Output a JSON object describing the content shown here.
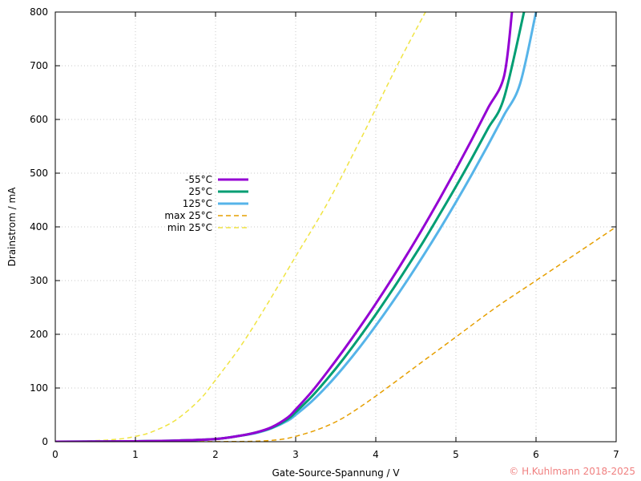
{
  "chart_data": {
    "type": "line",
    "title": "",
    "xlabel": "Gate-Source-Spannung / V",
    "ylabel": "Drainstrom / mA",
    "xlim": [
      0,
      7
    ],
    "ylim": [
      0,
      800
    ],
    "xticks": [
      0,
      1,
      2,
      3,
      4,
      5,
      6,
      7
    ],
    "yticks": [
      0,
      100,
      200,
      300,
      400,
      500,
      600,
      700,
      800
    ],
    "grid": true,
    "legend_position": "center-left",
    "series": [
      {
        "name": "-55°C",
        "color": "#9400d3",
        "dash": "solid",
        "x": [
          0,
          0.5,
          1.0,
          1.5,
          2.0,
          2.3,
          2.5,
          2.7,
          2.9,
          3.0,
          3.2,
          3.4,
          3.6,
          3.8,
          4.0,
          4.2,
          4.4,
          4.6,
          4.8,
          5.0,
          5.2,
          5.4,
          5.6,
          5.7
        ],
        "y": [
          0,
          0.3,
          0.8,
          2,
          5,
          11,
          17,
          27,
          45,
          60,
          93,
          131,
          171,
          213,
          257,
          303,
          351,
          401,
          453,
          507,
          563,
          621,
          680,
          800
        ]
      },
      {
        "name": "25°C",
        "color": "#009e73",
        "dash": "solid",
        "x": [
          0,
          0.5,
          1.0,
          1.5,
          2.0,
          2.3,
          2.5,
          2.7,
          2.9,
          3.0,
          3.2,
          3.4,
          3.6,
          3.8,
          4.0,
          4.2,
          4.4,
          4.6,
          4.8,
          5.0,
          5.2,
          5.4,
          5.6,
          5.85
        ],
        "y": [
          0,
          0.3,
          0.8,
          2,
          5,
          11,
          17,
          26,
          42,
          55,
          84,
          118,
          155,
          195,
          237,
          281,
          327,
          374,
          424,
          475,
          528,
          583,
          640,
          800
        ]
      },
      {
        "name": "125°C",
        "color": "#56b4e9",
        "dash": "solid",
        "x": [
          0,
          0.5,
          1.0,
          1.5,
          2.0,
          2.3,
          2.5,
          2.7,
          2.9,
          3.0,
          3.2,
          3.4,
          3.6,
          3.8,
          4.0,
          4.2,
          4.4,
          4.6,
          4.8,
          5.0,
          5.2,
          5.4,
          5.6,
          5.8,
          6.0
        ],
        "y": [
          0,
          0.3,
          0.8,
          2,
          5,
          11,
          16,
          25,
          39,
          50,
          75,
          105,
          139,
          176,
          216,
          258,
          302,
          348,
          396,
          446,
          498,
          552,
          608,
          666,
          800
        ]
      },
      {
        "name": "max 25°C",
        "color": "#e69f00",
        "dash": "dashed",
        "x": [
          0,
          1.0,
          2.0,
          2.5,
          2.8,
          3.0,
          3.3,
          3.6,
          4.0,
          4.5,
          5.0,
          5.5,
          6.0,
          6.5,
          7.0
        ],
        "y": [
          0,
          0,
          0.2,
          1,
          4,
          10,
          24,
          45,
          85,
          140,
          195,
          250,
          300,
          350,
          400
        ]
      },
      {
        "name": "min 25°C",
        "color": "#f0e442",
        "dash": "dashed",
        "x": [
          0,
          0.5,
          0.8,
          1.0,
          1.2,
          1.5,
          1.8,
          2.0,
          2.3,
          2.6,
          3.0,
          3.4,
          3.8,
          4.0,
          4.3,
          4.62
        ],
        "y": [
          0,
          2,
          5,
          10,
          18,
          40,
          78,
          115,
          175,
          245,
          345,
          445,
          560,
          620,
          710,
          800
        ]
      }
    ]
  },
  "copyright": "© H.Kuhlmann 2018-2025",
  "copyright_color": "#f08080"
}
